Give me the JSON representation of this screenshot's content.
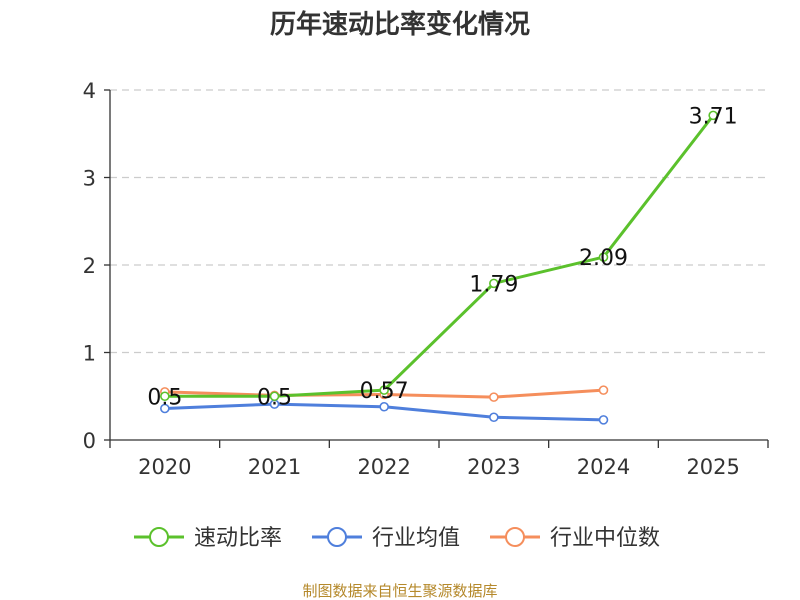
{
  "chart_data": {
    "type": "line",
    "title": "历年速动比率变化情况",
    "categories": [
      "2020",
      "2021",
      "2022",
      "2023",
      "2024",
      "2025"
    ],
    "y_ticks": [
      "0",
      "1",
      "2",
      "3",
      "4"
    ],
    "ylim": [
      0,
      4
    ],
    "xlabel": "",
    "ylabel": "",
    "grid": true,
    "legend_position": "bottom",
    "series": [
      {
        "name": "速动比率",
        "color": "#5bc12c",
        "values": [
          0.5,
          0.5,
          0.57,
          1.79,
          2.09,
          3.71
        ],
        "labels": [
          "0.5",
          "0.5",
          "0.57",
          "1.79",
          "2.09",
          "3.71"
        ]
      },
      {
        "name": "行业均值",
        "color": "#4f7fdc",
        "values": [
          0.36,
          0.41,
          0.38,
          0.26,
          0.23,
          null
        ]
      },
      {
        "name": "行业中位数",
        "color": "#f58e5c",
        "values": [
          0.55,
          0.51,
          0.52,
          0.49,
          0.57,
          null
        ]
      }
    ]
  },
  "footer": "制图数据来自恒生聚源数据库"
}
